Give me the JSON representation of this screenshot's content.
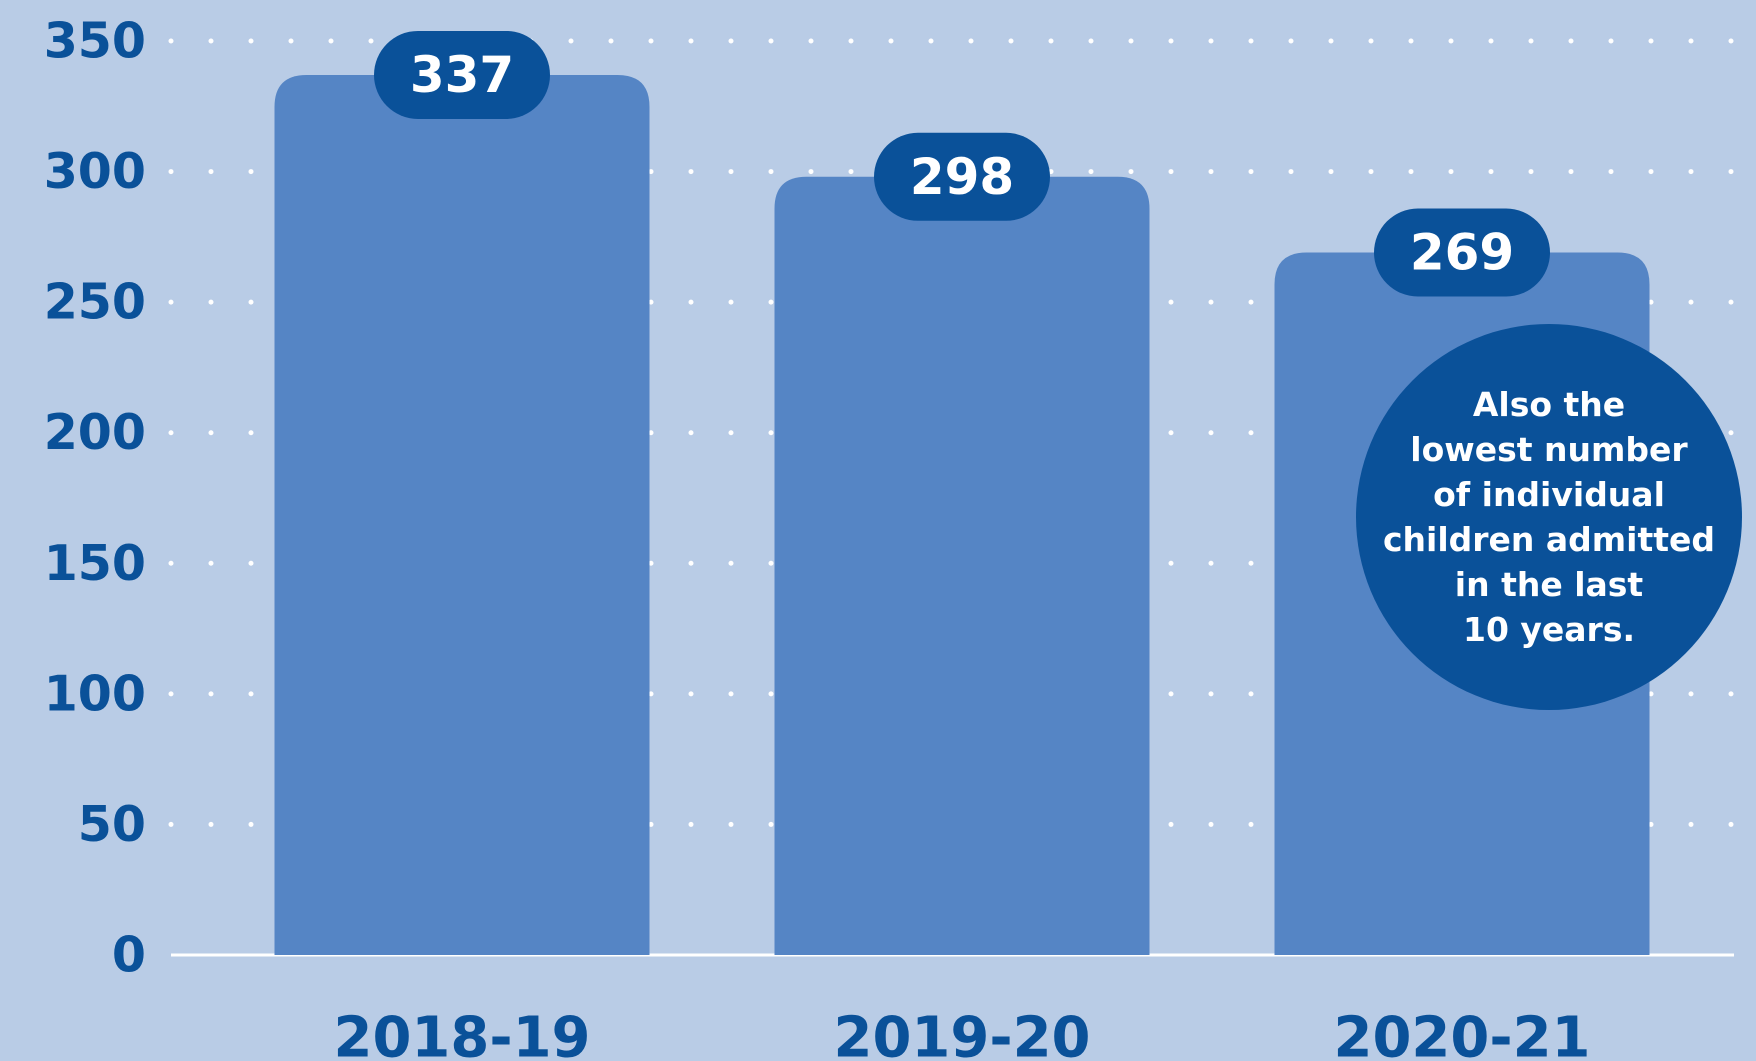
{
  "chart_data": {
    "type": "bar",
    "categories": [
      "2018-19",
      "2019-20",
      "2020-21"
    ],
    "values": [
      337,
      298,
      269
    ],
    "color": "#5585c5",
    "label_color": "#0a5199",
    "ylim": [
      0,
      350
    ],
    "yticks": [
      0,
      50,
      100,
      150,
      200,
      250,
      300,
      350
    ],
    "grid": true,
    "annotation": [
      "Also the",
      "lowest number",
      "of individual",
      "children admitted",
      "in the last",
      "10 years."
    ]
  }
}
